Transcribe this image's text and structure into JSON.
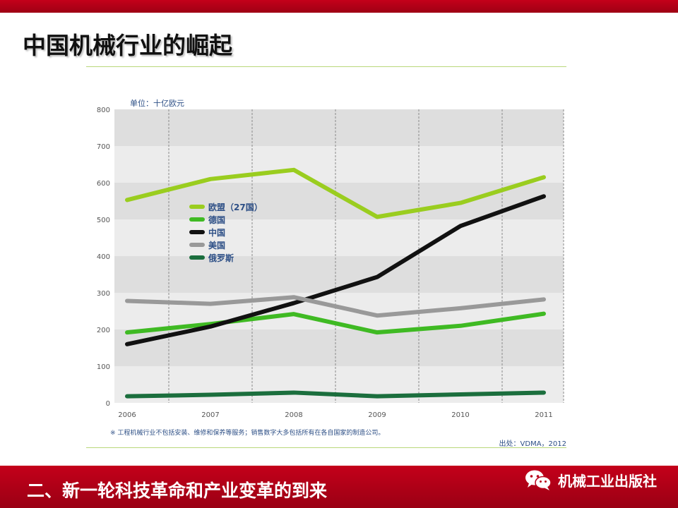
{
  "slide": {
    "title": "中国机械行业的崛起",
    "bottom_title": "二、新一轮科技革命和产业变革的到来",
    "brand": "机械工业出版社",
    "brand_icon": "wechat-icon"
  },
  "colors": {
    "accent_red": "#b8001a",
    "eu": "#9acd1f",
    "germany": "#3fba23",
    "china": "#111111",
    "usa": "#999999",
    "russia": "#1b6e3d"
  },
  "chart_data": {
    "type": "line",
    "unit_label": "单位：十亿欧元",
    "x": [
      "2006",
      "2007",
      "2008",
      "2009",
      "2010",
      "2011"
    ],
    "yticks": [
      "800",
      "700",
      "600",
      "500",
      "400",
      "300",
      "200",
      "100",
      "0"
    ],
    "ylim": [
      0,
      800
    ],
    "grid": "alternating horizontal bands with dashed vertical lines",
    "legend_position": "upper-left inside plot",
    "series": [
      {
        "name": "欧盟（27国）",
        "color_key": "eu",
        "values": [
          553,
          610,
          635,
          507,
          545,
          615
        ]
      },
      {
        "name": "德国",
        "color_key": "germany",
        "values": [
          192,
          215,
          242,
          192,
          210,
          243
        ]
      },
      {
        "name": "中国",
        "color_key": "china",
        "values": [
          160,
          208,
          272,
          343,
          482,
          563
        ]
      },
      {
        "name": "美国",
        "color_key": "usa",
        "values": [
          278,
          270,
          288,
          238,
          258,
          282
        ]
      },
      {
        "name": "俄罗斯",
        "color_key": "russia",
        "values": [
          18,
          22,
          28,
          18,
          23,
          28
        ]
      }
    ],
    "footnote": "※ 工程机械行业不包括安装、维修和保养等服务；销售数字大多包括所有在各自国家的制造公司。",
    "source": "出处：VDMA，2012"
  }
}
